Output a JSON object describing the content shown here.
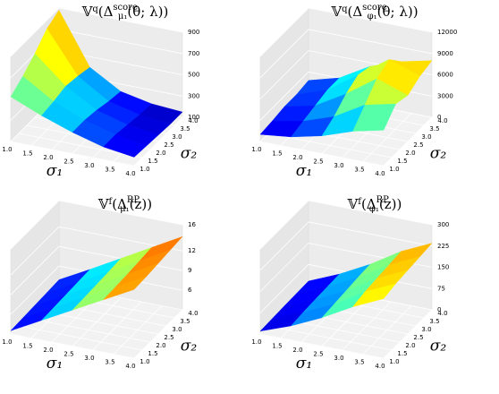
{
  "chart_data": [
    {
      "type": "surface",
      "title": [
        "𝕍",
        "q",
        "(Δ",
        "score",
        "μ₁",
        "(θ; λ))"
      ],
      "xlabel": "σ₁",
      "ylabel": "σ₂",
      "x": [
        1,
        1.75,
        2.5,
        3.25,
        4
      ],
      "y": [
        1,
        1.75,
        2.5,
        3.25,
        4
      ],
      "z": [
        [
          520,
          400,
          300,
          220,
          180
        ],
        [
          600,
          420,
          300,
          220,
          170
        ],
        [
          700,
          450,
          280,
          200,
          160
        ],
        [
          820,
          430,
          250,
          180,
          150
        ],
        [
          880,
          400,
          230,
          170,
          150
        ]
      ],
      "xlim": [
        1,
        4
      ],
      "ylim": [
        1,
        4
      ],
      "zlim": [
        100,
        900
      ],
      "xticks": [
        {
          "value": 1,
          "label": "1.0"
        },
        {
          "value": 1.5,
          "label": "1.5"
        },
        {
          "value": 2,
          "label": "2.0"
        },
        {
          "value": 2.5,
          "label": "2.5"
        },
        {
          "value": 3,
          "label": "3.0"
        },
        {
          "value": 3.5,
          "label": "3.5"
        },
        {
          "value": 4,
          "label": "4.0"
        }
      ],
      "yticks": [
        {
          "value": 1,
          "label": "1.0"
        },
        {
          "value": 1.5,
          "label": "1.5"
        },
        {
          "value": 2,
          "label": "2.0"
        },
        {
          "value": 2.5,
          "label": "2.5"
        },
        {
          "value": 3,
          "label": "3.0"
        },
        {
          "value": 3.5,
          "label": "3.5"
        },
        {
          "value": 4,
          "label": "4.0"
        }
      ],
      "zticks": [
        100,
        300,
        500,
        700,
        900
      ],
      "colormap": "jet"
    },
    {
      "type": "surface",
      "title": [
        "𝕍",
        "q",
        "(Δ",
        "score",
        "φ₁",
        "(θ; λ))"
      ],
      "xlabel": "σ₁",
      "ylabel": "σ₂",
      "x": [
        1,
        1.75,
        2.5,
        3.25,
        4
      ],
      "y": [
        1,
        1.75,
        2.5,
        3.25,
        4
      ],
      "z": [
        [
          1000,
          1500,
          2500,
          4000,
          5000
        ],
        [
          1200,
          2000,
          3500,
          6000,
          7000
        ],
        [
          1500,
          2500,
          5000,
          8000,
          6500
        ],
        [
          1500,
          3000,
          6000,
          9000,
          7500
        ],
        [
          1800,
          3000,
          5500,
          7000,
          8000
        ]
      ],
      "xlim": [
        1,
        4
      ],
      "ylim": [
        1,
        4
      ],
      "zlim": [
        0,
        12000
      ],
      "xticks": [
        {
          "value": 1,
          "label": "1.0"
        },
        {
          "value": 1.5,
          "label": "1.5"
        },
        {
          "value": 2,
          "label": "2.0"
        },
        {
          "value": 2.5,
          "label": "2.5"
        },
        {
          "value": 3,
          "label": "3.0"
        },
        {
          "value": 3.5,
          "label": "3.5"
        },
        {
          "value": 4,
          "label": "4.0"
        }
      ],
      "yticks": [
        {
          "value": 1,
          "label": "1.0"
        },
        {
          "value": 1.5,
          "label": "1.5"
        },
        {
          "value": 2,
          "label": "2.0"
        },
        {
          "value": 2.5,
          "label": "2.5"
        },
        {
          "value": 3,
          "label": "3.0"
        },
        {
          "value": 3.5,
          "label": "3.5"
        },
        {
          "value": 4,
          "label": "4.0"
        }
      ],
      "zticks": [
        0,
        3000,
        6000,
        9000,
        12000
      ],
      "colormap": "jet"
    },
    {
      "type": "surface",
      "title": [
        "𝕍",
        "f",
        "(Δ",
        "RP",
        "μ₁",
        "(z))"
      ],
      "xlabel": "σ₁",
      "ylabel": "σ₂",
      "x": [
        1,
        1.75,
        2.5,
        3.25,
        4
      ],
      "y": [
        1,
        1.75,
        2.5,
        3.25,
        4
      ],
      "z": [
        [
          3.5,
          6,
          8.5,
          11,
          13.5
        ],
        [
          3.6,
          6.1,
          8.6,
          11.1,
          13.6
        ],
        [
          3.7,
          6.2,
          8.7,
          11.2,
          13.8
        ],
        [
          3.8,
          6.3,
          8.8,
          11.4,
          14
        ],
        [
          3.9,
          6.4,
          9,
          11.6,
          14.2
        ]
      ],
      "xlim": [
        1,
        4
      ],
      "ylim": [
        1,
        4
      ],
      "zlim": [
        3,
        16
      ],
      "xticks": [
        {
          "value": 1,
          "label": "1.0"
        },
        {
          "value": 1.5,
          "label": "1.5"
        },
        {
          "value": 2,
          "label": "2.0"
        },
        {
          "value": 2.5,
          "label": "2.5"
        },
        {
          "value": 3,
          "label": "3.0"
        },
        {
          "value": 3.5,
          "label": "3.5"
        },
        {
          "value": 4,
          "label": "4.0"
        }
      ],
      "yticks": [
        {
          "value": 1,
          "label": "1.0"
        },
        {
          "value": 1.5,
          "label": "1.5"
        },
        {
          "value": 2,
          "label": "2.0"
        },
        {
          "value": 2.5,
          "label": "2.5"
        },
        {
          "value": 3,
          "label": "3.0"
        },
        {
          "value": 3.5,
          "label": "3.5"
        },
        {
          "value": 4,
          "label": "4.0"
        }
      ],
      "zticks": [
        6,
        9,
        12,
        16
      ],
      "colormap": "jet"
    },
    {
      "type": "surface",
      "title": [
        "𝕍",
        "f",
        "(Δ",
        "RP",
        "φ₁",
        "(z))"
      ],
      "xlabel": "σ₁",
      "ylabel": "σ₂",
      "x": [
        1,
        1.75,
        2.5,
        3.25,
        4
      ],
      "y": [
        1,
        1.75,
        2.5,
        3.25,
        4
      ],
      "z": [
        [
          10,
          50,
          100,
          160,
          210
        ],
        [
          12,
          55,
          105,
          170,
          220
        ],
        [
          14,
          58,
          110,
          175,
          225
        ],
        [
          15,
          60,
          115,
          180,
          230
        ],
        [
          16,
          62,
          118,
          185,
          235
        ]
      ],
      "xlim": [
        1,
        4
      ],
      "ylim": [
        1,
        4
      ],
      "zlim": [
        0,
        300
      ],
      "xticks": [
        {
          "value": 1,
          "label": "1.0"
        },
        {
          "value": 1.5,
          "label": "1.5"
        },
        {
          "value": 2,
          "label": "2.0"
        },
        {
          "value": 2.5,
          "label": "2.5"
        },
        {
          "value": 3,
          "label": "3.0"
        },
        {
          "value": 3.5,
          "label": "3.5"
        },
        {
          "value": 4,
          "label": "4.0"
        }
      ],
      "yticks": [
        {
          "value": 1,
          "label": "1.0"
        },
        {
          "value": 1.5,
          "label": "1.5"
        },
        {
          "value": 2,
          "label": "2.0"
        },
        {
          "value": 2.5,
          "label": "2.5"
        },
        {
          "value": 3,
          "label": "3.0"
        },
        {
          "value": 3.5,
          "label": "3.5"
        },
        {
          "value": 4,
          "label": "4.0"
        }
      ],
      "zticks": [
        0,
        75,
        150,
        225,
        300
      ],
      "colormap": "jet"
    }
  ]
}
